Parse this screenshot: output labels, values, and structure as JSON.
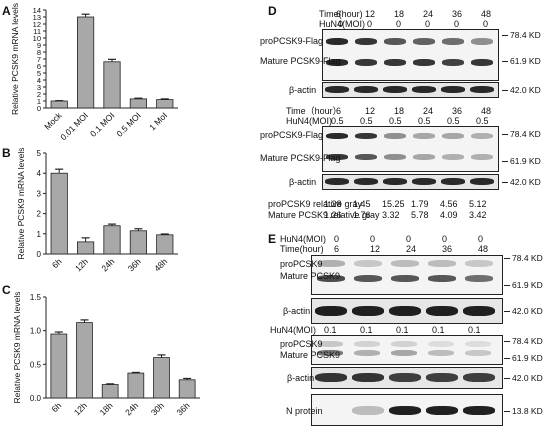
{
  "chart_data": [
    {
      "panel": "A",
      "type": "bar",
      "ylabel": "Relative PCSK9 mRNA levels",
      "ylim": [
        0,
        14
      ],
      "yticks": [
        0,
        1,
        2,
        3,
        4,
        5,
        6,
        7,
        8,
        9,
        10,
        11,
        12,
        13,
        14
      ],
      "categories": [
        "Mock",
        "0.01 MOI",
        "0.1 MOI",
        "0.5 MOI",
        "1 MoI"
      ],
      "values": [
        1.0,
        13.0,
        6.6,
        1.3,
        1.2
      ],
      "errors": [
        0.05,
        0.4,
        0.35,
        0.1,
        0.1
      ]
    },
    {
      "panel": "B",
      "type": "bar",
      "ylabel": "Relative PCSK9 mRNA levels",
      "ylim": [
        0,
        5
      ],
      "yticks": [
        0,
        1,
        2,
        3,
        4,
        5
      ],
      "categories": [
        "6h",
        "12h",
        "24h",
        "36h",
        "48h"
      ],
      "values": [
        4.0,
        0.6,
        1.4,
        1.15,
        0.95
      ],
      "errors": [
        0.2,
        0.2,
        0.08,
        0.1,
        0.04
      ]
    },
    {
      "panel": "C",
      "type": "bar",
      "ylabel": "Relative PCSK9 mRNA levels",
      "ylim": [
        0,
        1.5
      ],
      "yticks": [
        0.0,
        0.5,
        1.0,
        1.5
      ],
      "categories": [
        "6h",
        "12h",
        "18h",
        "24h",
        "30h",
        "36h"
      ],
      "values": [
        0.95,
        1.12,
        0.2,
        0.37,
        0.6,
        0.27
      ],
      "errors": [
        0.03,
        0.04,
        0.01,
        0.01,
        0.04,
        0.02
      ]
    }
  ],
  "panel_labels": {
    "A": "A",
    "B": "B",
    "C": "C",
    "D": "D",
    "E": "E"
  },
  "panel_d": {
    "block1": {
      "time_label": "Time(hour)",
      "moi_label": "HuN4(MOI)",
      "times": [
        "6",
        "12",
        "18",
        "24",
        "36",
        "48"
      ],
      "mois": [
        "0",
        "0",
        "0",
        "0",
        "0",
        "0"
      ],
      "row_labels": [
        "proPCSK9-Flag",
        "Mature PCSK9-Flag",
        "β-actin"
      ],
      "markers": [
        "78.4 KD",
        "61.9 KD",
        "42.0 KD"
      ]
    },
    "block2": {
      "time_label": "Time（hour）",
      "moi_label": "HuN4(MOI)",
      "times": [
        "6",
        "12",
        "18",
        "24",
        "36",
        "48"
      ],
      "mois": [
        "0.5",
        "0.5",
        "0.5",
        "0.5",
        "0.5",
        "0.5"
      ],
      "row_labels": [
        "proPCSK9-Flag",
        "Mature PCSK9-Flag",
        "β-actin"
      ],
      "markers": [
        "78.4 KD",
        "61.9 KD",
        "42.0 KD"
      ]
    },
    "gray": {
      "pro_label": "proPCSK9 relative gray",
      "mature_label": "Mature PCSK9 relative gray",
      "pro": [
        "1.28",
        "1.45",
        "15.25",
        "1.79",
        "4.56",
        "5.12"
      ],
      "mature": [
        "1.26",
        "1.76",
        "3.32",
        "5.78",
        "4.09",
        "3.42"
      ]
    }
  },
  "panel_e": {
    "moi_label": "HuN4(MOI)",
    "time_label": "Time(hour)",
    "mois": [
      "0",
      "0",
      "0",
      "0",
      "0"
    ],
    "times": [
      "6",
      "12",
      "24",
      "36",
      "48"
    ],
    "block1_labels": [
      "proPCSK9",
      "Mature PCSK9"
    ],
    "actin": "β-actin",
    "mois2": [
      "0.1",
      "0.1",
      "0.1",
      "0.1",
      "0.1"
    ],
    "block2_labels": [
      "proPCSK9",
      "Mature PCSK9"
    ],
    "n_protein": "N protein",
    "markers1": [
      "78.4 KD",
      "61.9 KD",
      "42.0 KD"
    ],
    "markers2": [
      "78.4 KD",
      "61.9 KD",
      "42.0 KD",
      "13.8 KD"
    ]
  },
  "colors": {
    "bar": "#a8a8a8",
    "axis": "#222222"
  }
}
